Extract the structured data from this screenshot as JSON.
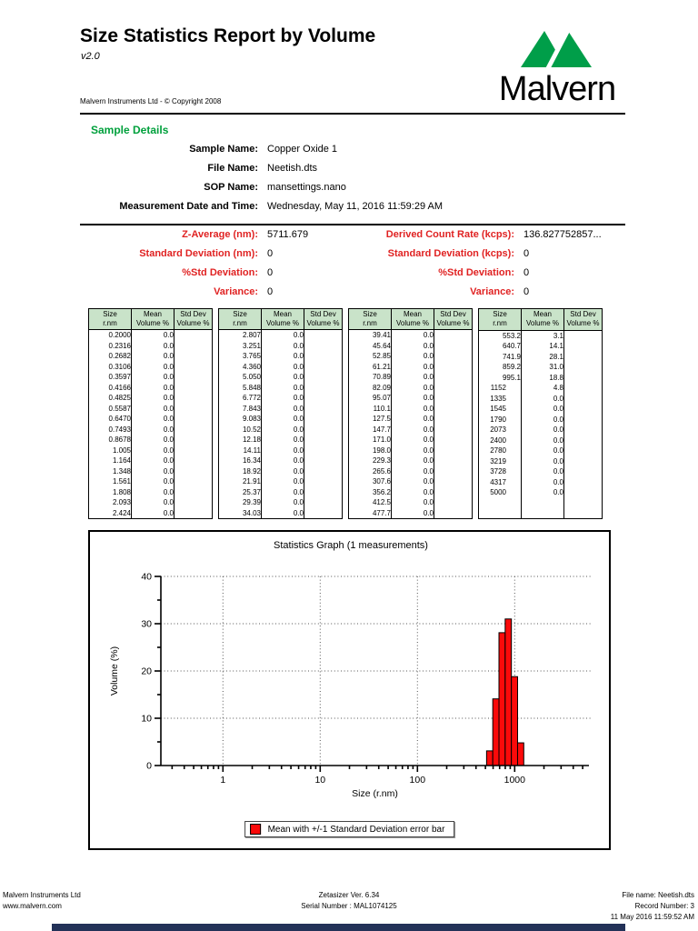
{
  "colors": {
    "heading_green": "#00a03c",
    "logo_green": "#009e49",
    "label_red": "#e02222",
    "table_header_bg": "#c9e3c9",
    "bar_red": "#fb0a0a",
    "bottom_bar_navy": "#233258"
  },
  "header": {
    "title": "Size Statistics Report by Volume",
    "version": "v2.0",
    "copyright": "Malvern Instruments Ltd  - © Copyright 2008",
    "logo_text": "Malvern"
  },
  "sample_details": {
    "heading": "Sample Details",
    "rows": [
      {
        "label": "Sample Name:",
        "value": "Copper Oxide 1"
      },
      {
        "label": "File Name:",
        "value": "Neetish.dts"
      },
      {
        "label": "SOP Name:",
        "value": "mansettings.nano"
      },
      {
        "label": "Measurement Date and Time:",
        "value": "Wednesday, May 11, 2016 11:59:29 AM"
      }
    ]
  },
  "statistics": {
    "left": [
      {
        "label": "Z-Average (nm):",
        "value": "5711.679"
      },
      {
        "label": "Standard Deviation (nm):",
        "value": "0"
      },
      {
        "label": "%Std Deviation:",
        "value": "0"
      },
      {
        "label": "Variance:",
        "value": "0"
      }
    ],
    "right": [
      {
        "label": "Derived Count Rate (kcps):",
        "value": "136.827752857..."
      },
      {
        "label": "Standard Deviation (kcps):",
        "value": "0"
      },
      {
        "label": "%Std Deviation:",
        "value": "0"
      },
      {
        "label": "Variance:",
        "value": "0"
      }
    ]
  },
  "tables": {
    "col_headers": [
      {
        "line1": "Size",
        "line2": "r.nm"
      },
      {
        "line1": "Mean",
        "line2": "Volume %"
      },
      {
        "line1": "Std Dev",
        "line2": "Volume %"
      }
    ],
    "groups": [
      {
        "rows": [
          [
            "0.2000",
            "0.0"
          ],
          [
            "0.2316",
            "0.0"
          ],
          [
            "0.2682",
            "0.0"
          ],
          [
            "0.3106",
            "0.0"
          ],
          [
            "0.3597",
            "0.0"
          ],
          [
            "0.4166",
            "0.0"
          ],
          [
            "0.4825",
            "0.0"
          ],
          [
            "0.5587",
            "0.0"
          ],
          [
            "0.6470",
            "0.0"
          ],
          [
            "0.7493",
            "0.0"
          ],
          [
            "0.8678",
            "0.0"
          ],
          [
            "1.005",
            "0.0"
          ],
          [
            "1.164",
            "0.0"
          ],
          [
            "1.348",
            "0.0"
          ],
          [
            "1.561",
            "0.0"
          ],
          [
            "1.808",
            "0.0"
          ],
          [
            "2.093",
            "0.0"
          ],
          [
            "2.424",
            "0.0"
          ]
        ]
      },
      {
        "rows": [
          [
            "2.807",
            "0.0"
          ],
          [
            "3.251",
            "0.0"
          ],
          [
            "3.765",
            "0.0"
          ],
          [
            "4.360",
            "0.0"
          ],
          [
            "5.050",
            "0.0"
          ],
          [
            "5.848",
            "0.0"
          ],
          [
            "6.772",
            "0.0"
          ],
          [
            "7.843",
            "0.0"
          ],
          [
            "9.083",
            "0.0"
          ],
          [
            "10.52",
            "0.0"
          ],
          [
            "12.18",
            "0.0"
          ],
          [
            "14.11",
            "0.0"
          ],
          [
            "16.34",
            "0.0"
          ],
          [
            "18.92",
            "0.0"
          ],
          [
            "21.91",
            "0.0"
          ],
          [
            "25.37",
            "0.0"
          ],
          [
            "29.39",
            "0.0"
          ],
          [
            "34.03",
            "0.0"
          ]
        ]
      },
      {
        "rows": [
          [
            "39.41",
            "0.0"
          ],
          [
            "45.64",
            "0.0"
          ],
          [
            "52.85",
            "0.0"
          ],
          [
            "61.21",
            "0.0"
          ],
          [
            "70.89",
            "0.0"
          ],
          [
            "82.09",
            "0.0"
          ],
          [
            "95.07",
            "0.0"
          ],
          [
            "110.1",
            "0.0"
          ],
          [
            "127.5",
            "0.0"
          ],
          [
            "147.7",
            "0.0"
          ],
          [
            "171.0",
            "0.0"
          ],
          [
            "198.0",
            "0.0"
          ],
          [
            "229.3",
            "0.0"
          ],
          [
            "265.6",
            "0.0"
          ],
          [
            "307.6",
            "0.0"
          ],
          [
            "356.2",
            "0.0"
          ],
          [
            "412.5",
            "0.0"
          ],
          [
            "477.7",
            "0.0"
          ]
        ]
      },
      {
        "rows": [
          [
            "553.2",
            "3.1"
          ],
          [
            "640.7",
            "14.1"
          ],
          [
            "741.9",
            "28.1"
          ],
          [
            "859.2",
            "31.0"
          ],
          [
            "995.1",
            "18.8"
          ],
          [
            "1152",
            "4.8"
          ],
          [
            "1335",
            "0.0"
          ],
          [
            "1545",
            "0.0"
          ],
          [
            "1790",
            "0.0"
          ],
          [
            "2073",
            "0.0"
          ],
          [
            "2400",
            "0.0"
          ],
          [
            "2780",
            "0.0"
          ],
          [
            "3219",
            "0.0"
          ],
          [
            "3728",
            "0.0"
          ],
          [
            "4317",
            "0.0"
          ],
          [
            "5000",
            "0.0"
          ]
        ]
      }
    ]
  },
  "chart_data": {
    "type": "bar",
    "title": "Statistics Graph (1 measurements)",
    "xlabel": "Size (r.nm)",
    "ylabel": "Volume (%)",
    "x_scale": "log",
    "xlim": [
      0.23,
      5800
    ],
    "ylim": [
      0,
      40
    ],
    "y_ticks": [
      0,
      10,
      20,
      30,
      40
    ],
    "x_ticks": [
      1,
      10,
      100,
      1000
    ],
    "grid": "dotted",
    "legend_position": "bottom",
    "bin_ratio": 1.1585,
    "bars": [
      {
        "x": 553.2,
        "y": 3.1
      },
      {
        "x": 640.7,
        "y": 14.1
      },
      {
        "x": 741.9,
        "y": 28.1
      },
      {
        "x": 859.2,
        "y": 31.0
      },
      {
        "x": 995.1,
        "y": 18.8
      },
      {
        "x": 1152,
        "y": 4.8
      }
    ],
    "legend_label": "Mean with +/-1 Standard Deviation error bar"
  },
  "footer": {
    "left": [
      "Malvern Instruments Ltd",
      "www.malvern.com"
    ],
    "center": [
      "Zetasizer Ver. 6.34",
      "Serial Number : MAL1074125"
    ],
    "right": [
      "File name: Neetish.dts",
      "Record Number: 3",
      "11 May 2016 11:59:52 AM"
    ]
  }
}
